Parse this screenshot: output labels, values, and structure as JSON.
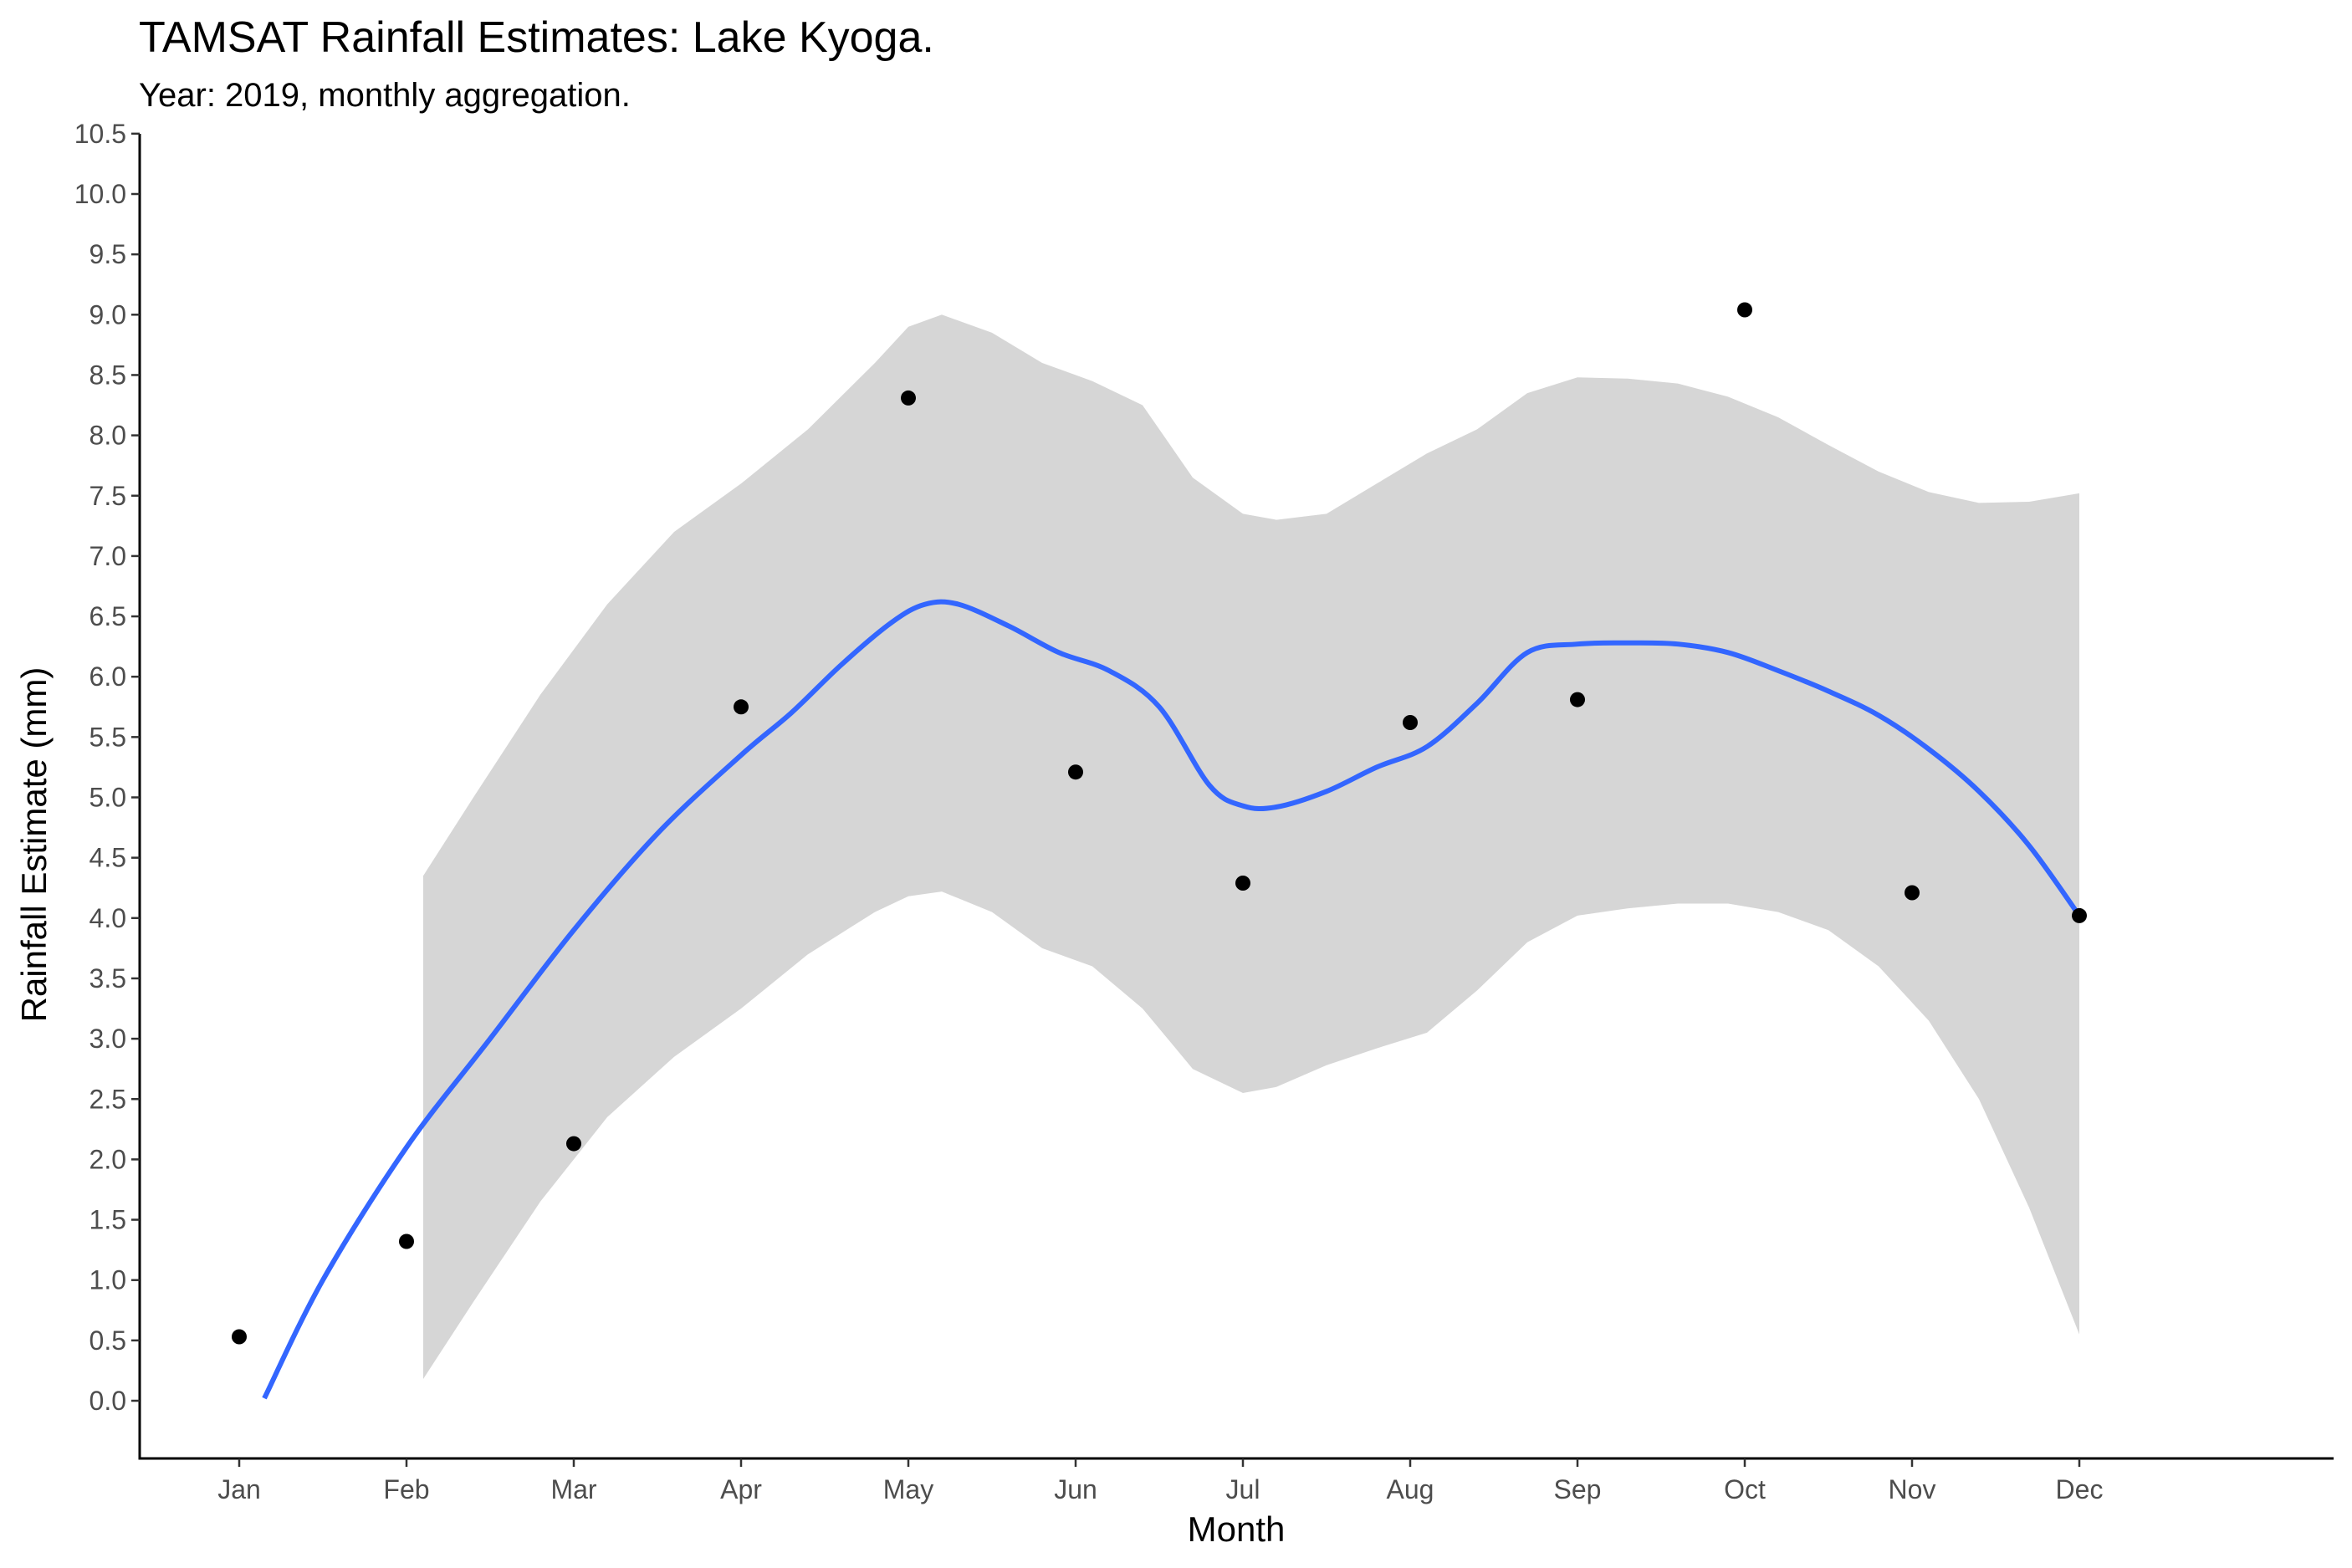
{
  "chart_data": {
    "type": "scatter",
    "title": "TAMSAT Rainfall Estimates: Lake Kyoga.",
    "subtitle": "Year: 2019, monthly aggregation.",
    "xlabel": "Month",
    "ylabel": "Rainfall Estimate (mm)",
    "categories": [
      "Jan",
      "Feb",
      "Mar",
      "Apr",
      "May",
      "Jun",
      "Jul",
      "Aug",
      "Sep",
      "Oct",
      "Nov",
      "Dec"
    ],
    "ylim": [
      -0.5,
      10.5
    ],
    "yticks": [
      "0.0",
      "0.5",
      "1.0",
      "1.5",
      "2.0",
      "2.5",
      "3.0",
      "3.5",
      "4.0",
      "4.5",
      "5.0",
      "5.5",
      "6.0",
      "6.5",
      "7.0",
      "7.5",
      "8.0",
      "8.5",
      "9.0",
      "9.5",
      "10.0",
      "10.5"
    ],
    "grid": false,
    "points": [
      0.53,
      1.32,
      2.13,
      5.75,
      8.31,
      5.21,
      4.29,
      5.62,
      5.81,
      9.04,
      4.21,
      4.02
    ],
    "smooth": {
      "x": [
        1.15,
        1.5,
        2.0,
        2.5,
        3.0,
        3.5,
        4.0,
        4.3,
        4.6,
        4.9,
        5.1,
        5.3,
        5.6,
        5.9,
        6.2,
        6.5,
        6.8,
        7.0,
        7.2,
        7.5,
        7.8,
        8.1,
        8.4,
        8.7,
        9.0,
        9.3,
        9.6,
        9.9,
        10.2,
        10.5,
        10.8,
        11.1,
        11.4,
        11.7,
        12.0
      ],
      "fit": [
        0.02,
        1.0,
        2.1,
        3.0,
        3.9,
        4.7,
        5.35,
        5.7,
        6.1,
        6.45,
        6.6,
        6.6,
        6.42,
        6.2,
        6.05,
        5.75,
        5.1,
        4.93,
        4.92,
        5.05,
        5.25,
        5.42,
        5.78,
        6.2,
        6.27,
        6.28,
        6.27,
        6.2,
        6.05,
        5.88,
        5.68,
        5.4,
        5.05,
        4.6,
        4.02
      ],
      "ci_x": [
        2.1,
        2.4,
        2.8,
        3.2,
        3.6,
        4.0,
        4.4,
        4.8,
        5.0,
        5.2,
        5.5,
        5.8,
        6.1,
        6.4,
        6.7,
        7.0,
        7.2,
        7.5,
        7.8,
        8.1,
        8.4,
        8.7,
        9.0,
        9.3,
        9.6,
        9.9,
        10.2,
        10.5,
        10.8,
        11.1,
        11.4,
        11.7,
        12.0
      ],
      "ci_upper": [
        4.35,
        5.0,
        5.85,
        6.6,
        7.2,
        7.6,
        8.05,
        8.6,
        8.9,
        9.0,
        8.85,
        8.6,
        8.45,
        8.25,
        7.65,
        7.35,
        7.3,
        7.35,
        7.6,
        7.85,
        8.05,
        8.35,
        8.48,
        8.47,
        8.43,
        8.32,
        8.15,
        7.92,
        7.7,
        7.53,
        7.44,
        7.45,
        7.52
      ],
      "ci_lower": [
        0.18,
        0.82,
        1.65,
        2.35,
        2.85,
        3.25,
        3.7,
        4.05,
        4.18,
        4.22,
        4.05,
        3.75,
        3.6,
        3.25,
        2.75,
        2.55,
        2.6,
        2.78,
        2.92,
        3.05,
        3.4,
        3.8,
        4.02,
        4.08,
        4.12,
        4.12,
        4.05,
        3.9,
        3.6,
        3.15,
        2.5,
        1.6,
        0.55
      ]
    },
    "colors": {
      "line": "#3366ff",
      "ribbon": "#d6d6d6",
      "points": "#000000",
      "axis": "#000000",
      "ticks": "#4d4d4d"
    }
  }
}
